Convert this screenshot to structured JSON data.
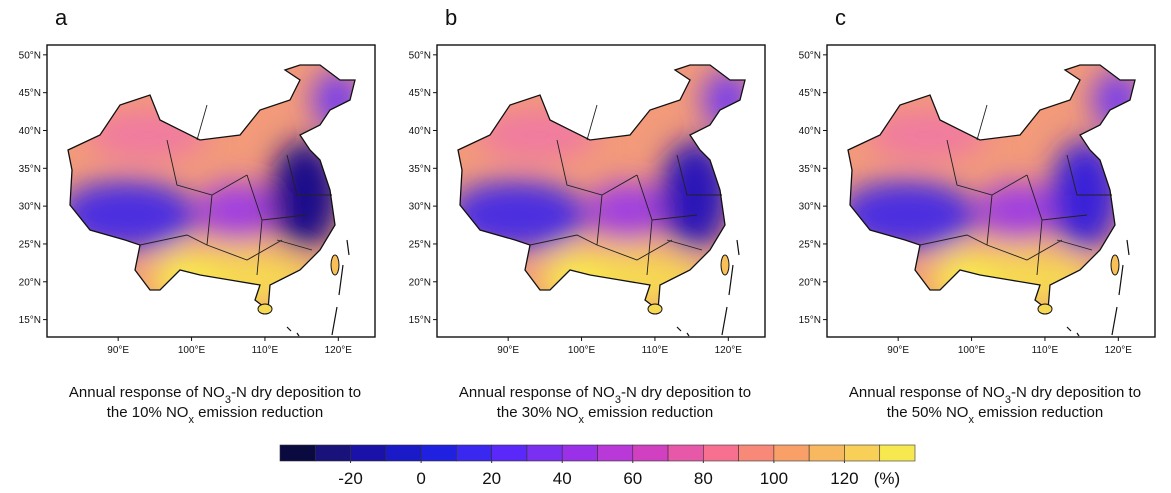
{
  "panels": [
    {
      "label": "a",
      "caption": [
        [
          "Annual response of NO",
          "3",
          "-N dry deposition to"
        ],
        [
          "the 10% NO",
          "x",
          " emission reduction"
        ]
      ],
      "east_color": "#1c0e8a"
    },
    {
      "label": "b",
      "caption": [
        [
          "Annual response of NO",
          "3",
          "-N dry deposition to"
        ],
        [
          "the 30% NO",
          "x",
          " emission reduction"
        ]
      ],
      "east_color": "#2a16b8"
    },
    {
      "label": "c",
      "caption": [
        [
          "Annual response of NO",
          "3",
          "-N dry deposition to"
        ],
        [
          "the 50% NO",
          "x",
          " emission reduction"
        ]
      ],
      "east_color": "#3a22d8"
    }
  ],
  "map_axes": {
    "lon_lim": [
      80.3,
      125
    ],
    "lat_lim": [
      12.7,
      51.3
    ],
    "lat_ticks": [
      {
        "value": 50,
        "label": "50°N"
      },
      {
        "value": 45,
        "label": "45°N"
      },
      {
        "value": 40,
        "label": "40°N"
      },
      {
        "value": 35,
        "label": "35°N"
      },
      {
        "value": 30,
        "label": "30°N"
      },
      {
        "value": 25,
        "label": "25°N"
      },
      {
        "value": 20,
        "label": "20°N"
      },
      {
        "value": 15,
        "label": "15°N"
      }
    ],
    "lon_ticks": [
      {
        "value": 90,
        "label": "90°E"
      },
      {
        "value": 100,
        "label": "100°E"
      },
      {
        "value": 110,
        "label": "110°E"
      },
      {
        "value": 120,
        "label": "120°E"
      }
    ]
  },
  "colorbar": {
    "lim": [
      -40,
      140
    ],
    "ticks": [
      -20,
      0,
      20,
      40,
      60,
      80,
      100,
      120
    ],
    "unit": "(%)",
    "colors": [
      "#0a0a40",
      "#18127a",
      "#1a12a8",
      "#1a1ac8",
      "#2020e0",
      "#3a28f0",
      "#5a28f8",
      "#7a30f0",
      "#9a30e8",
      "#b838d8",
      "#d040c0",
      "#e858a8",
      "#f87090",
      "#f88878",
      "#f8a068",
      "#f8b860",
      "#f8d058",
      "#f8e850"
    ]
  }
}
